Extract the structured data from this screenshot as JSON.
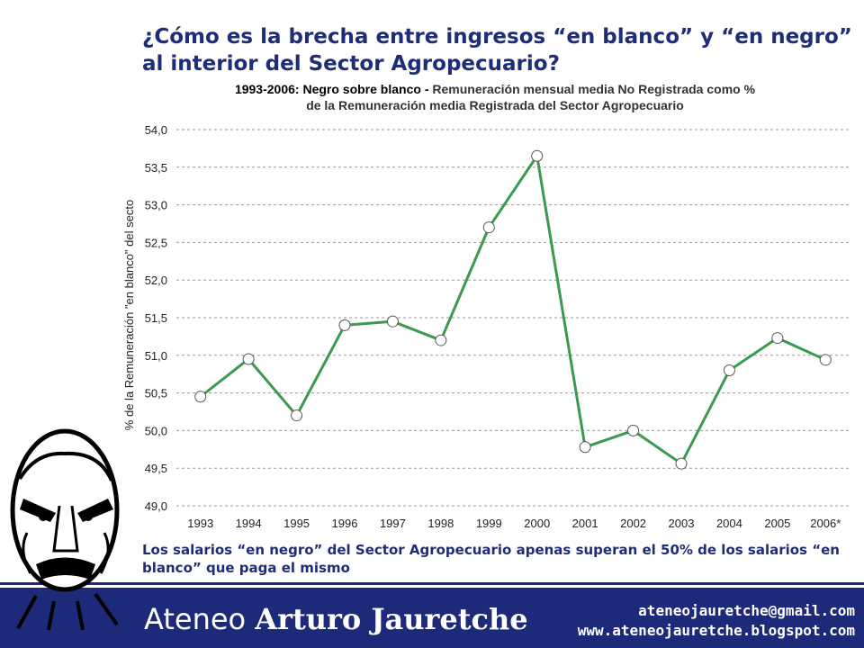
{
  "slide": {
    "title": "¿Cómo es la brecha entre ingresos “en blanco” y “en negro” al interior del Sector Agropecuario?",
    "caption": "Los salarios “en negro” del Sector Agropecuario apenas superan el 50% de los salarios “en blanco” que paga el mismo"
  },
  "chart_title": {
    "bold": "1993-2006: Negro sobre blanco - ",
    "rest_line1": "Remuneración mensual media No Registrada como %",
    "rest_line2": "de la Remuneración media Registrada del Sector Agropecuario"
  },
  "footer": {
    "brand_light": "Ateneo ",
    "brand_bold": "Arturo Jauretche",
    "email": "ateneojauretche@gmail.com",
    "website": "www.ateneojauretche.blogspot.com"
  },
  "colors": {
    "title": "#1f2d78",
    "line": "#3a9a4e",
    "footer": "#1d2a7a",
    "grid": "#9a9a9a"
  },
  "chart_data": {
    "type": "line",
    "title": "1993-2006: Negro sobre blanco - Remuneración mensual media No Registrada como % de la Remuneración media Registrada del Sector Agropecuario",
    "xlabel": "",
    "ylabel": "% de la Remuneración \"en blanco\" del secto",
    "ylim": [
      49.0,
      54.0
    ],
    "yticks": [
      "49,0",
      "49,5",
      "50,0",
      "50,5",
      "51,0",
      "51,5",
      "52,0",
      "52,5",
      "53,0",
      "53,5",
      "54,0"
    ],
    "grid": true,
    "categories": [
      "1993",
      "1994",
      "1995",
      "1996",
      "1997",
      "1998",
      "1999",
      "2000",
      "2001",
      "2002",
      "2003",
      "2004",
      "2005",
      "2006*"
    ],
    "series": [
      {
        "values": [
          50.45,
          50.95,
          50.2,
          51.4,
          51.45,
          51.2,
          52.7,
          53.65,
          49.78,
          50.0,
          49.56,
          50.8,
          51.23,
          50.94
        ]
      }
    ]
  }
}
